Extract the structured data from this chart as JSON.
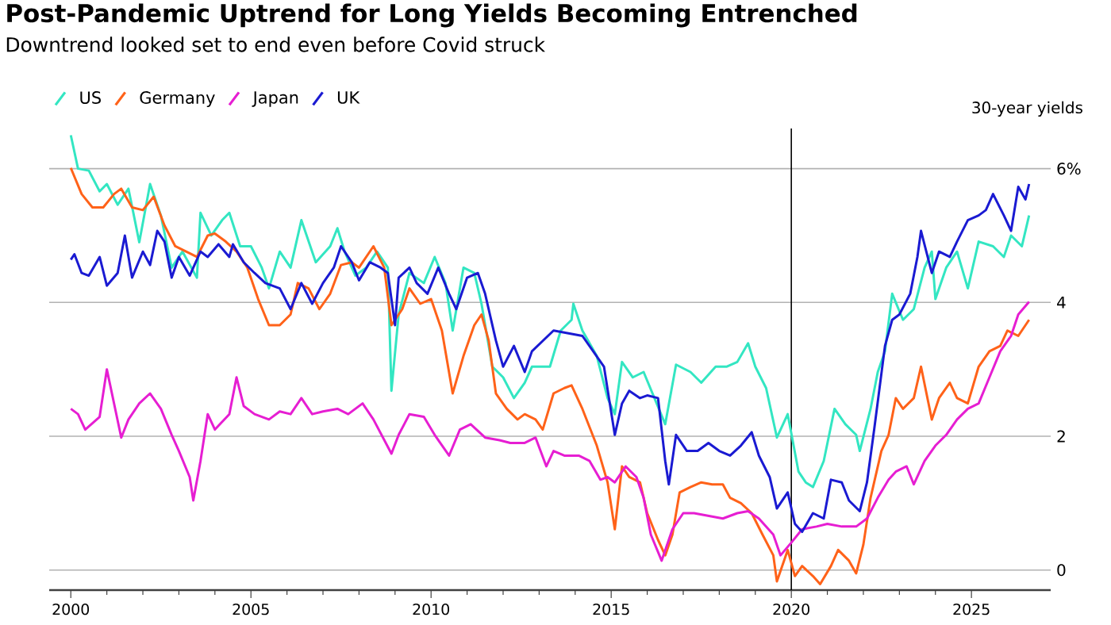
{
  "chart_data": {
    "type": "line",
    "title": "Post-Pandemic Uptrend for Long Yields Becoming Entrenched",
    "subtitle": "Downtrend looked set to end even before Covid struck",
    "ylabel": "30-year yields",
    "xlim": [
      1999.4,
      2027.2
    ],
    "ylim": [
      -0.3,
      6.6
    ],
    "xticks": [
      2000,
      2005,
      2010,
      2015,
      2020,
      2025
    ],
    "yticks": [
      0,
      2,
      4,
      {
        "value": 6,
        "label": "6%"
      }
    ],
    "grid": "y",
    "legend": "top left",
    "ref_lines": [
      {
        "axis": "x",
        "value": 2020,
        "color": "#000000"
      }
    ],
    "series": [
      {
        "name": "US",
        "color": "#33e6c2",
        "x": [
          2000.0,
          2000.2,
          2000.5,
          2000.8,
          2001.0,
          2001.3,
          2001.6,
          2001.9,
          2002.2,
          2002.5,
          2002.8,
          2003.1,
          2003.5,
          2003.6,
          2003.9,
          2004.2,
          2004.4,
          2004.7,
          2005.0,
          2005.3,
          2005.5,
          2005.8,
          2006.1,
          2006.4,
          2006.8,
          2007.2,
          2007.4,
          2007.6,
          2007.9,
          2008.2,
          2008.5,
          2008.8,
          2008.9,
          2009.1,
          2009.4,
          2009.8,
          2010.1,
          2010.4,
          2010.6,
          2010.9,
          2011.2,
          2011.4,
          2011.7,
          2012.0,
          2012.3,
          2012.6,
          2012.8,
          2013.3,
          2013.6,
          2013.9,
          2013.95,
          2014.2,
          2014.6,
          2014.9,
          2015.1,
          2015.3,
          2015.6,
          2015.9,
          2016.2,
          2016.5,
          2016.8,
          2017.2,
          2017.5,
          2017.9,
          2018.2,
          2018.5,
          2018.8,
          2019.0,
          2019.3,
          2019.6,
          2019.9,
          2020.2,
          2020.4,
          2020.6,
          2020.9,
          2021.2,
          2021.5,
          2021.8,
          2021.9,
          2022.2,
          2022.4,
          2022.6,
          2022.8,
          2023.1,
          2023.4,
          2023.7,
          2023.9,
          2024.0,
          2024.3,
          2024.6,
          2024.9,
          2025.2,
          2025.6,
          2025.9,
          2026.1,
          2026.4,
          2026.6
        ],
        "values": [
          6.5,
          6.0,
          5.97,
          5.66,
          5.77,
          5.46,
          5.7,
          4.9,
          5.77,
          5.3,
          4.52,
          4.76,
          4.37,
          5.34,
          5.0,
          5.23,
          5.34,
          4.84,
          4.84,
          4.52,
          4.21,
          4.76,
          4.52,
          5.23,
          4.6,
          4.84,
          5.11,
          4.76,
          4.4,
          4.52,
          4.76,
          4.52,
          2.68,
          3.82,
          4.44,
          4.29,
          4.68,
          4.29,
          3.58,
          4.52,
          4.44,
          3.98,
          3.04,
          2.88,
          2.57,
          2.8,
          3.04,
          3.04,
          3.58,
          3.74,
          3.98,
          3.58,
          3.2,
          2.57,
          2.33,
          3.11,
          2.88,
          2.96,
          2.57,
          2.18,
          3.07,
          2.96,
          2.8,
          3.04,
          3.04,
          3.11,
          3.39,
          3.04,
          2.72,
          1.98,
          2.33,
          1.47,
          1.31,
          1.24,
          1.63,
          2.41,
          2.18,
          2.02,
          1.78,
          2.41,
          2.96,
          3.27,
          4.13,
          3.74,
          3.9,
          4.52,
          4.76,
          4.05,
          4.52,
          4.76,
          4.21,
          4.91,
          4.84,
          4.68,
          5.0,
          4.84,
          5.3
        ]
      },
      {
        "name": "Germany",
        "color": "#ff6219",
        "x": [
          2000.0,
          2000.3,
          2000.6,
          2000.9,
          2001.2,
          2001.4,
          2001.7,
          2002.0,
          2002.3,
          2002.6,
          2002.9,
          2003.2,
          2003.5,
          2003.8,
          2004.0,
          2004.3,
          2004.6,
          2004.9,
          2005.2,
          2005.5,
          2005.8,
          2006.1,
          2006.3,
          2006.6,
          2006.9,
          2007.2,
          2007.5,
          2007.8,
          2008.0,
          2008.4,
          2008.7,
          2008.9,
          2009.2,
          2009.4,
          2009.7,
          2010.0,
          2010.3,
          2010.6,
          2010.9,
          2011.2,
          2011.4,
          2011.6,
          2011.8,
          2012.1,
          2012.4,
          2012.6,
          2012.9,
          2013.1,
          2013.4,
          2013.7,
          2013.9,
          2014.2,
          2014.6,
          2014.9,
          2015.1,
          2015.3,
          2015.5,
          2015.8,
          2016.0,
          2016.3,
          2016.5,
          2016.7,
          2016.9,
          2017.2,
          2017.5,
          2017.8,
          2018.1,
          2018.3,
          2018.6,
          2018.9,
          2019.2,
          2019.5,
          2019.6,
          2019.9,
          2020.1,
          2020.3,
          2020.6,
          2020.8,
          2021.1,
          2021.3,
          2021.6,
          2021.8,
          2022.0,
          2022.2,
          2022.5,
          2022.7,
          2022.9,
          2023.1,
          2023.4,
          2023.6,
          2023.9,
          2024.1,
          2024.4,
          2024.6,
          2024.9,
          2025.2,
          2025.5,
          2025.8,
          2026.0,
          2026.3,
          2026.6
        ],
        "values": [
          6.01,
          5.62,
          5.42,
          5.42,
          5.62,
          5.7,
          5.42,
          5.38,
          5.58,
          5.15,
          4.84,
          4.76,
          4.68,
          5.0,
          5.03,
          4.91,
          4.76,
          4.52,
          4.05,
          3.66,
          3.66,
          3.82,
          4.29,
          4.21,
          3.9,
          4.13,
          4.56,
          4.6,
          4.52,
          4.84,
          4.52,
          3.66,
          3.9,
          4.21,
          3.98,
          4.05,
          3.58,
          2.64,
          3.2,
          3.66,
          3.82,
          3.43,
          2.64,
          2.41,
          2.25,
          2.33,
          2.25,
          2.1,
          2.64,
          2.72,
          2.76,
          2.41,
          1.86,
          1.31,
          0.61,
          1.55,
          1.39,
          1.31,
          0.85,
          0.45,
          0.22,
          0.53,
          1.16,
          1.24,
          1.31,
          1.28,
          1.28,
          1.08,
          1.0,
          0.85,
          0.53,
          0.22,
          -0.17,
          0.3,
          -0.09,
          0.06,
          -0.09,
          -0.21,
          0.06,
          0.3,
          0.14,
          -0.05,
          0.38,
          1.08,
          1.78,
          2.02,
          2.57,
          2.41,
          2.57,
          3.04,
          2.25,
          2.57,
          2.8,
          2.57,
          2.49,
          3.04,
          3.27,
          3.35,
          3.58,
          3.5,
          3.74
        ]
      },
      {
        "name": "Japan",
        "color": "#e61ed2",
        "x": [
          2000.0,
          2000.2,
          2000.4,
          2000.8,
          2001.0,
          2001.2,
          2001.4,
          2001.6,
          2001.9,
          2002.2,
          2002.5,
          2002.8,
          2003.0,
          2003.3,
          2003.4,
          2003.6,
          2003.8,
          2004.0,
          2004.4,
          2004.6,
          2004.8,
          2005.1,
          2005.5,
          2005.8,
          2006.1,
          2006.4,
          2006.7,
          2007.0,
          2007.4,
          2007.7,
          2007.9,
          2008.1,
          2008.4,
          2008.9,
          2009.1,
          2009.4,
          2009.8,
          2010.1,
          2010.5,
          2010.8,
          2011.1,
          2011.5,
          2011.9,
          2012.2,
          2012.6,
          2012.9,
          2013.2,
          2013.4,
          2013.7,
          2014.1,
          2014.4,
          2014.7,
          2014.9,
          2015.1,
          2015.4,
          2015.7,
          2015.9,
          2016.1,
          2016.4,
          2016.7,
          2017.0,
          2017.3,
          2017.7,
          2018.1,
          2018.5,
          2018.8,
          2019.1,
          2019.5,
          2019.7,
          2020.0,
          2020.3,
          2020.7,
          2021.0,
          2021.4,
          2021.8,
          2022.1,
          2022.4,
          2022.7,
          2022.9,
          2023.2,
          2023.4,
          2023.7,
          2024.0,
          2024.3,
          2024.6,
          2024.9,
          2025.2,
          2025.5,
          2025.8,
          2026.1,
          2026.3,
          2026.6
        ],
        "values": [
          2.41,
          2.33,
          2.1,
          2.29,
          3.0,
          2.49,
          1.98,
          2.25,
          2.49,
          2.64,
          2.41,
          2.02,
          1.78,
          1.39,
          1.04,
          1.63,
          2.33,
          2.1,
          2.33,
          2.88,
          2.45,
          2.33,
          2.25,
          2.37,
          2.33,
          2.57,
          2.33,
          2.37,
          2.41,
          2.33,
          2.41,
          2.49,
          2.25,
          1.74,
          2.02,
          2.33,
          2.29,
          2.02,
          1.71,
          2.1,
          2.18,
          1.98,
          1.94,
          1.9,
          1.9,
          1.98,
          1.55,
          1.78,
          1.71,
          1.71,
          1.63,
          1.35,
          1.39,
          1.31,
          1.55,
          1.39,
          1.08,
          0.53,
          0.14,
          0.61,
          0.85,
          0.85,
          0.81,
          0.77,
          0.85,
          0.88,
          0.77,
          0.53,
          0.22,
          0.41,
          0.61,
          0.65,
          0.69,
          0.65,
          0.65,
          0.77,
          1.08,
          1.35,
          1.47,
          1.55,
          1.28,
          1.63,
          1.86,
          2.02,
          2.25,
          2.41,
          2.49,
          2.88,
          3.27,
          3.5,
          3.82,
          4.01
        ]
      },
      {
        "name": "UK",
        "color": "#1a1ad2",
        "x": [
          2000.0,
          2000.1,
          2000.3,
          2000.5,
          2000.8,
          2001.0,
          2001.3,
          2001.5,
          2001.7,
          2002.0,
          2002.2,
          2002.4,
          2002.6,
          2002.8,
          2003.0,
          2003.3,
          2003.6,
          2003.8,
          2004.1,
          2004.4,
          2004.5,
          2004.8,
          2005.1,
          2005.4,
          2005.8,
          2006.1,
          2006.4,
          2006.7,
          2007.0,
          2007.3,
          2007.5,
          2007.8,
          2008.0,
          2008.3,
          2008.6,
          2008.8,
          2009.0,
          2009.1,
          2009.4,
          2009.6,
          2009.9,
          2010.2,
          2010.5,
          2010.7,
          2011.0,
          2011.3,
          2011.5,
          2011.8,
          2012.0,
          2012.3,
          2012.6,
          2012.8,
          2013.4,
          2013.8,
          2014.2,
          2014.5,
          2014.8,
          2015.1,
          2015.3,
          2015.5,
          2015.8,
          2016.0,
          2016.3,
          2016.5,
          2016.6,
          2016.8,
          2017.1,
          2017.4,
          2017.7,
          2018.0,
          2018.3,
          2018.6,
          2018.9,
          2019.1,
          2019.4,
          2019.6,
          2019.9,
          2020.1,
          2020.3,
          2020.6,
          2020.9,
          2021.1,
          2021.4,
          2021.6,
          2021.9,
          2022.1,
          2022.3,
          2022.6,
          2022.8,
          2023.0,
          2023.3,
          2023.5,
          2023.6,
          2023.9,
          2024.1,
          2024.4,
          2024.6,
          2024.9,
          2025.2,
          2025.4,
          2025.6,
          2025.9,
          2026.1,
          2026.3,
          2026.5,
          2026.6
        ],
        "values": [
          4.64,
          4.72,
          4.44,
          4.4,
          4.68,
          4.25,
          4.44,
          5.0,
          4.37,
          4.76,
          4.56,
          5.07,
          4.91,
          4.37,
          4.68,
          4.4,
          4.76,
          4.68,
          4.87,
          4.68,
          4.87,
          4.6,
          4.44,
          4.29,
          4.21,
          3.9,
          4.29,
          3.98,
          4.29,
          4.52,
          4.84,
          4.6,
          4.33,
          4.6,
          4.52,
          4.44,
          3.66,
          4.37,
          4.52,
          4.29,
          4.13,
          4.52,
          4.13,
          3.9,
          4.37,
          4.44,
          4.13,
          3.43,
          3.04,
          3.35,
          2.96,
          3.27,
          3.58,
          3.54,
          3.5,
          3.27,
          3.04,
          2.02,
          2.49,
          2.68,
          2.57,
          2.61,
          2.57,
          1.63,
          1.28,
          2.02,
          1.78,
          1.78,
          1.9,
          1.78,
          1.71,
          1.86,
          2.06,
          1.71,
          1.39,
          0.92,
          1.16,
          0.69,
          0.57,
          0.85,
          0.77,
          1.35,
          1.31,
          1.04,
          0.88,
          1.31,
          2.1,
          3.35,
          3.74,
          3.82,
          4.13,
          4.68,
          5.07,
          4.44,
          4.76,
          4.68,
          4.91,
          5.23,
          5.3,
          5.38,
          5.62,
          5.3,
          5.07,
          5.73,
          5.54,
          5.77
        ]
      }
    ]
  }
}
